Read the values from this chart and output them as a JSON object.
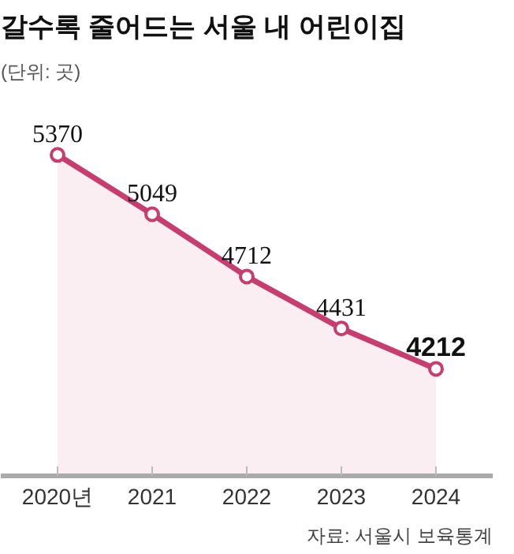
{
  "chart_data": {
    "type": "area",
    "title": "갈수록 줄어드는 서울 내 어린이집",
    "subtitle": "(단위: 곳)",
    "annotations": [
      "자료: 서울시 보육통계"
    ],
    "categories": [
      "2020년",
      "2021",
      "2022",
      "2023",
      "2024"
    ],
    "series": [
      {
        "color": "#c63d6e",
        "values": [
          5370,
          5049,
          4712,
          4431,
          4212
        ]
      }
    ],
    "data_labels": true,
    "marker": "circle"
  }
}
